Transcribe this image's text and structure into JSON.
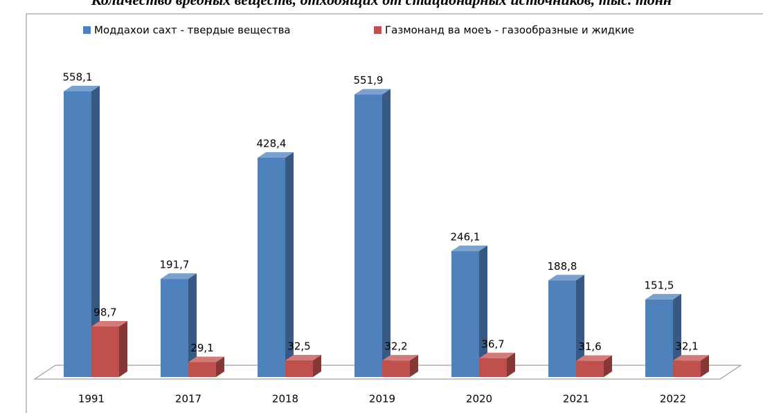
{
  "chart_data": {
    "type": "bar3d",
    "title": "Количество вредных веществ, отходящих от стационарных источников, тыс. тонн",
    "categories": [
      "1991",
      "2017",
      "2018",
      "2019",
      "2020",
      "2021",
      "2022"
    ],
    "series": [
      {
        "name": "Моддахои сахт - твердые вещества",
        "color": "#4f81bd",
        "values": [
          558.1,
          191.7,
          428.4,
          551.9,
          246.1,
          188.8,
          151.5
        ],
        "value_labels": [
          "558,1",
          "191,7",
          "428,4",
          "551,9",
          "246,1",
          "188,8",
          "151,5"
        ]
      },
      {
        "name": "Газмонанд ва моеъ - газообразные и жидкие",
        "color": "#c0504d",
        "values": [
          98.7,
          29.1,
          32.5,
          32.2,
          36.7,
          31.6,
          32.1
        ],
        "value_labels": [
          "98,7",
          "29,1",
          "32,5",
          "32,2",
          "36,7",
          "31,6",
          "32,1"
        ]
      }
    ]
  }
}
